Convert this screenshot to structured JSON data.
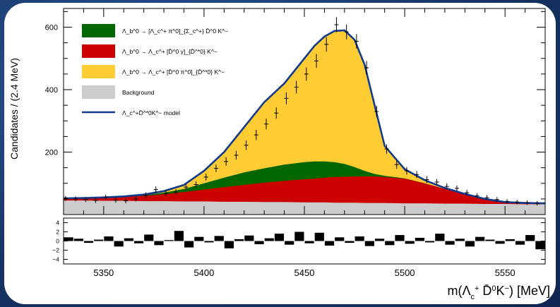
{
  "chart_data": {
    "type": "area",
    "xlabel": "m(Λ_c^+ D̄^0 K^−) [MeV]",
    "ylabel": "Candidates / (2.4 MeV)",
    "xlim": [
      5330,
      5570
    ],
    "ylim": [
      0,
      660
    ],
    "x_ticks": [
      "5350",
      "5400",
      "5450",
      "5500",
      "5550"
    ],
    "y_ticks": [
      "200",
      "400",
      "600"
    ],
    "pull_ylim": [
      -5,
      5
    ],
    "pull_ticks": [
      "4",
      "2",
      "0",
      "−2",
      "−4"
    ],
    "legend_placement": "top-left",
    "legend": [
      {
        "main": "Λ_b^0 → [Λ_c^+ π^0]_{Σ_c^+} D̄^0 K^−",
        "color": "#006600"
      },
      {
        "main": "Λ_b^0 → Λ_c^+ [D̄^0 γ]_{D̄^*0} K^−",
        "color": "#cc0000"
      },
      {
        "main": "Λ_b^0 → Λ_c^+ [D̄^0 π^0]_{D̄^*0} K^−",
        "color": "#ffcc33"
      },
      {
        "main": "Background",
        "color": "#cccccc"
      },
      {
        "main": "Λ_c^+D̄^*0K^− model",
        "color": "#123a8c"
      }
    ],
    "x": [
      5330,
      5340,
      5350,
      5360,
      5370,
      5380,
      5390,
      5400,
      5410,
      5420,
      5430,
      5440,
      5450,
      5455,
      5460,
      5465,
      5470,
      5475,
      5480,
      5485,
      5490,
      5500,
      5510,
      5520,
      5530,
      5540,
      5550,
      5560,
      5570
    ],
    "series": [
      {
        "name": "Background",
        "values": [
          45,
          45,
          44,
          44,
          43,
          43,
          42,
          42,
          41,
          41,
          40,
          40,
          39,
          39,
          39,
          38,
          38,
          38,
          37,
          37,
          37,
          36,
          36,
          35,
          35,
          34,
          34,
          33,
          33
        ]
      },
      {
        "name": "Λ_b^0 → Λ_c^+ [D̄^0 γ]_{D̄^*0} K^−",
        "values": [
          52,
          53,
          55,
          57,
          60,
          65,
          72,
          80,
          88,
          95,
          102,
          108,
          113,
          115,
          118,
          120,
          121,
          122,
          122,
          122,
          120,
          115,
          100,
          82,
          65,
          50,
          40,
          37,
          36
        ]
      },
      {
        "name": "Λ_b^0 → [Λ_c^+ π^0]_{Σ_c^+} D̄^0 K^−",
        "values": [
          52,
          53,
          55,
          58,
          62,
          70,
          82,
          100,
          118,
          135,
          148,
          160,
          168,
          170,
          170,
          168,
          162,
          152,
          140,
          130,
          124,
          116,
          100,
          82,
          65,
          50,
          40,
          37,
          36
        ]
      },
      {
        "name": "Λ_c^+D̄^*0K^− model",
        "values": [
          52,
          53,
          55,
          58,
          64,
          75,
          95,
          140,
          200,
          280,
          360,
          420,
          500,
          540,
          570,
          588,
          590,
          560,
          480,
          350,
          220,
          145,
          110,
          85,
          66,
          50,
          40,
          37,
          36
        ]
      }
    ],
    "data_points": {
      "x": [
        5331,
        5336,
        5341,
        5346,
        5351,
        5356,
        5361,
        5366,
        5371,
        5376,
        5381,
        5386,
        5391,
        5396,
        5401,
        5406,
        5411,
        5416,
        5421,
        5426,
        5431,
        5436,
        5441,
        5446,
        5451,
        5456,
        5461,
        5466,
        5471,
        5476,
        5481,
        5486,
        5491,
        5496,
        5501,
        5506,
        5511,
        5516,
        5521,
        5526,
        5531,
        5536,
        5541,
        5546,
        5551,
        5556,
        5561,
        5566
      ],
      "y": [
        52,
        50,
        48,
        45,
        55,
        46,
        44,
        50,
        62,
        80,
        68,
        72,
        88,
        96,
        120,
        148,
        170,
        190,
        222,
        255,
        290,
        325,
        372,
        408,
        450,
        492,
        545,
        608,
        585,
        555,
        470,
        330,
        210,
        160,
        140,
        128,
        112,
        104,
        90,
        84,
        70,
        60,
        54,
        48,
        42,
        40,
        38,
        36
      ],
      "err": [
        8,
        8,
        8,
        8,
        8,
        8,
        8,
        8,
        9,
        10,
        9,
        9,
        10,
        10,
        11,
        12,
        13,
        14,
        15,
        16,
        17,
        18,
        19,
        20,
        21,
        22,
        23,
        24,
        24,
        23,
        22,
        18,
        15,
        13,
        12,
        11,
        11,
        10,
        10,
        9,
        9,
        8,
        8,
        8,
        7,
        7,
        7,
        7
      ]
    },
    "pulls": [
      0.8,
      0.5,
      -0.4,
      0.3,
      1.0,
      -1.2,
      0.6,
      -0.5,
      1.4,
      -0.9,
      0.2,
      2.2,
      -1.4,
      0.9,
      -0.3,
      1.1,
      -1.6,
      0.4,
      1.2,
      -0.7,
      0.6,
      1.6,
      -0.8,
      2.0,
      -0.5,
      1.8,
      -1.0,
      0.8,
      -0.4,
      1.0,
      -1.1,
      0.5,
      -0.9,
      1.3,
      -0.6,
      0.7,
      -0.3,
      1.6,
      -0.8,
      0.5,
      -1.2,
      0.9,
      0.3,
      -0.6,
      0.4,
      -0.8,
      1.3,
      -1.8
    ]
  }
}
